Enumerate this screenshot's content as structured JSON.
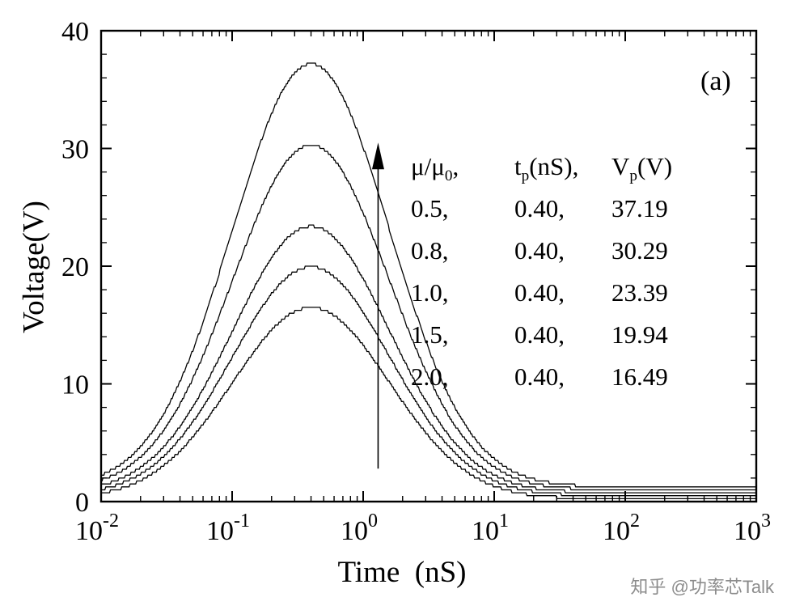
{
  "figure": {
    "panel_label": "(a)",
    "watermark": "知乎 @功率芯Talk",
    "x_axis_label": "Time  (nS)",
    "y_axis_label": "Voltage(V)"
  },
  "legend": {
    "header": {
      "mu_main": "μ/μ",
      "mu_sub": "0",
      "mu_rest": ",",
      "tp_main": "t",
      "tp_sub": "p",
      "tp_rest": "(nS),",
      "vp_main": "V",
      "vp_sub": "p",
      "vp_rest": "(V)"
    },
    "rows": [
      {
        "mu": "0.5,",
        "tp": "0.40,",
        "vp": "37.19"
      },
      {
        "mu": "0.8,",
        "tp": "0.40,",
        "vp": "30.29"
      },
      {
        "mu": "1.0,",
        "tp": "0.40,",
        "vp": "23.39"
      },
      {
        "mu": "1.5,",
        "tp": "0.40,",
        "vp": "19.94"
      },
      {
        "mu": "2.0,",
        "tp": "0.40,",
        "vp": "16.49"
      }
    ]
  },
  "chart_data": {
    "type": "line",
    "title": "",
    "xlabel": "Time (nS)",
    "ylabel": "Voltage(V)",
    "x_scale": "log",
    "xlim": [
      0.01,
      1000
    ],
    "ylim": [
      0,
      40
    ],
    "x_ticks_exponents": [
      -2,
      -1,
      0,
      1,
      2,
      3
    ],
    "y_ticks": [
      0,
      10,
      20,
      30,
      40
    ],
    "y_minor_step": 2,
    "grid": false,
    "legend_position": "upper right inside",
    "line_color": "#000000",
    "background": "#ffffff",
    "series": [
      {
        "name": "mu/mu0=0.5",
        "mu_ratio": 0.5,
        "peak_time_ns": 0.4,
        "peak_voltage": 37.19,
        "tail_voltage": 1.25
      },
      {
        "name": "mu/mu0=0.8",
        "mu_ratio": 0.8,
        "peak_time_ns": 0.4,
        "peak_voltage": 30.29,
        "tail_voltage": 1.0
      },
      {
        "name": "mu/mu0=1.0",
        "mu_ratio": 1.0,
        "peak_time_ns": 0.4,
        "peak_voltage": 23.39,
        "tail_voltage": 0.75
      },
      {
        "name": "mu/mu0=1.5",
        "mu_ratio": 1.5,
        "peak_time_ns": 0.4,
        "peak_voltage": 19.94,
        "tail_voltage": 0.5
      },
      {
        "name": "mu/mu0=2.0",
        "mu_ratio": 2.0,
        "peak_time_ns": 0.4,
        "peak_voltage": 16.49,
        "tail_voltage": 0.25
      }
    ],
    "curve_shape": {
      "sigma_decades": 0.6,
      "quantize_step_v": 0.25
    },
    "annotation_arrow": {
      "t_ns": 1.3,
      "v_from": 2.8,
      "v_to": 30.5,
      "direction": "up"
    }
  }
}
